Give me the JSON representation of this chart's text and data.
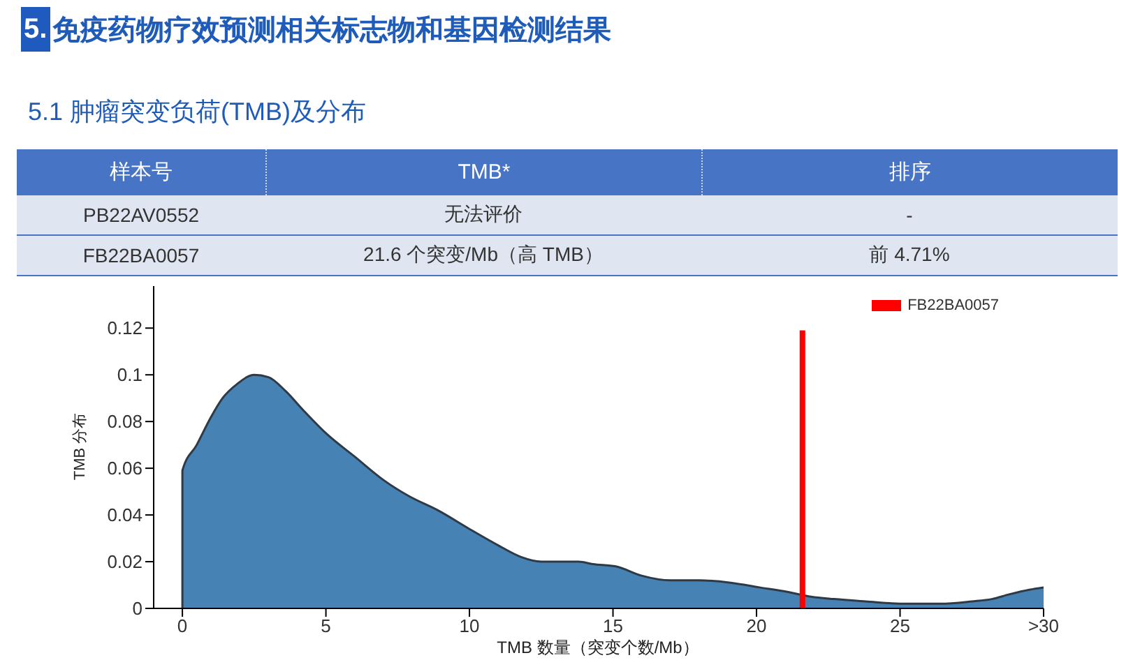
{
  "chart_data": {
    "type": "area",
    "title": "5. 免疫药物疗效预测相关标志物和基因检测结果",
    "subtitle": "5.1 肿瘤突变负荷(TMB)及分布",
    "annotations": [
      "样本号",
      "TMB*",
      "排序",
      "PB22AV0552",
      "无法评价",
      "-",
      "FB22BA0057",
      "21.6 个突变/Mb（高 TMB）",
      "前 4.71%"
    ],
    "xlabel": "TMB 数量（突变个数/Mb）",
    "ylabel": "TMB 分布",
    "series": [
      {
        "color": "#4682b4",
        "x": [
          0,
          0,
          0.5,
          1,
          1.4,
          1.9,
          2.5,
          3,
          3.6,
          4.2,
          5,
          6,
          7,
          7.9,
          8.9,
          10,
          11,
          11.8,
          12.5,
          13.1,
          13.8,
          14.3,
          15.1,
          16,
          17,
          18,
          19.1,
          20.1,
          21.1,
          21.9,
          22.7,
          23.8,
          25.1,
          26.4,
          27.5,
          28.2,
          28.8,
          29.5,
          30
        ],
        "values": [
          0,
          0.059,
          0.07,
          0.082,
          0.09,
          0.096,
          0.1,
          0.099,
          0.093,
          0.085,
          0.075,
          0.065,
          0.055,
          0.048,
          0.042,
          0.034,
          0.027,
          0.022,
          0.02,
          0.02,
          0.02,
          0.019,
          0.018,
          0.014,
          0.012,
          0.012,
          0.011,
          0.009,
          0.007,
          0.005,
          0.004,
          0.003,
          0.002,
          0.002,
          0.003,
          0.004,
          0.006,
          0.008,
          0.009
        ]
      },
      {
        "type": "line",
        "name": "FB22BA0057",
        "color": "#ff0000",
        "x": [
          21.6,
          21.6
        ],
        "values": [
          0,
          0.119
        ]
      }
    ],
    "xlim": [
      -1,
      30
    ],
    "xticks": [
      0,
      5,
      10,
      15,
      20,
      25,
      {
        "value": 30,
        "label": ">30"
      }
    ],
    "ylim": [
      0,
      0.138
    ],
    "yticks": [
      0,
      0.02,
      0.04,
      0.06,
      0.08,
      0.1,
      0.12
    ],
    "legend": "top right"
  }
}
